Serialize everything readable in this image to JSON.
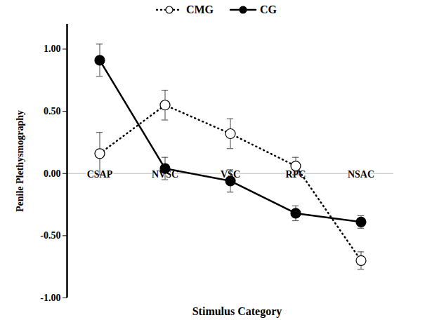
{
  "chart_data": {
    "type": "line",
    "categories": [
      "CSAP",
      "NVSC",
      "VSC",
      "RPC",
      "NSAC"
    ],
    "x_label": "Stimulus Category",
    "y_label": "Penile Plethysmography",
    "ylim": [
      -1,
      1.2
    ],
    "yticks": [
      {
        "value": -1,
        "label": "-1.00"
      },
      {
        "value": -0.5,
        "label": "-0.50"
      },
      {
        "value": 0,
        "label": "0.00"
      },
      {
        "value": 0.5,
        "label": "0.50"
      },
      {
        "value": 1,
        "label": "1.00"
      }
    ],
    "grid": false,
    "legend": "top",
    "series": [
      {
        "name": "CMG",
        "color": "#000000",
        "marker": "open_circle",
        "line_style": "dotted",
        "values": [
          0.16,
          0.55,
          0.32,
          0.06,
          -0.7
        ],
        "errors": [
          0.17,
          0.12,
          0.12,
          0.07,
          0.07
        ]
      },
      {
        "name": "CG",
        "color": "#000000",
        "marker": "circle",
        "line_style": "solid",
        "values": [
          0.91,
          0.04,
          -0.06,
          -0.32,
          -0.39
        ],
        "errors": [
          0.13,
          0.09,
          0.09,
          0.06,
          0.05
        ]
      }
    ]
  }
}
